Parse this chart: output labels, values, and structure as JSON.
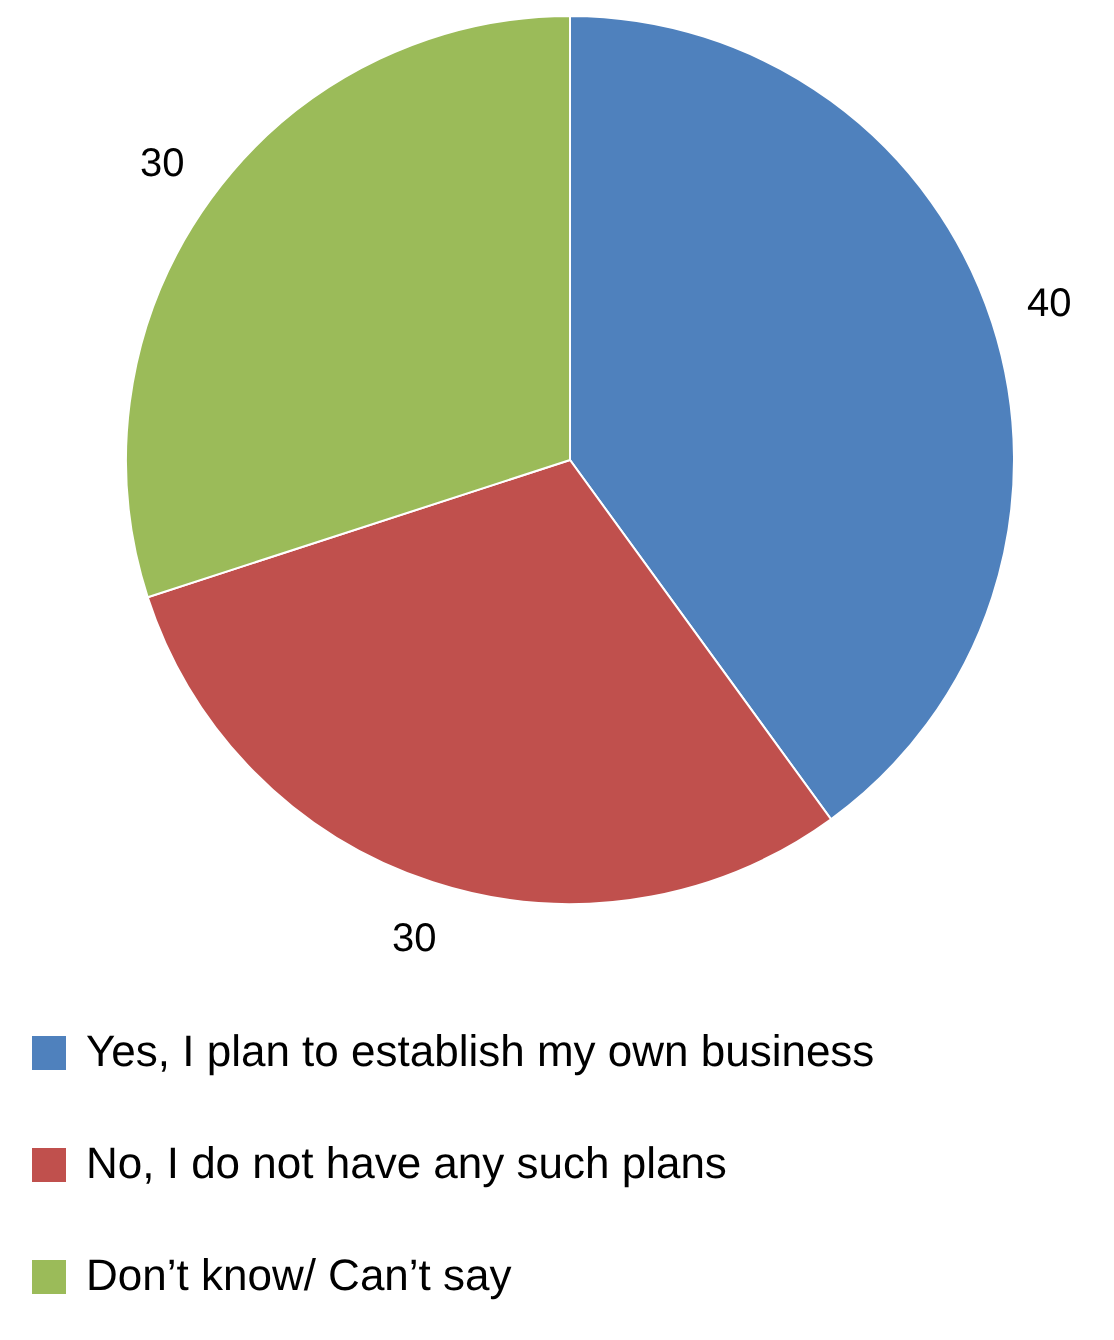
{
  "chart_data": {
    "type": "pie",
    "categories": [
      "Yes, I plan to establish my own business",
      "No, I do not have any such plans",
      "Don’t know/ Can’t say"
    ],
    "values": [
      40,
      30,
      30
    ],
    "colors": [
      "#4f81bd",
      "#c0504d",
      "#9bbb59"
    ],
    "data_labels": true,
    "legend": "bottom"
  }
}
